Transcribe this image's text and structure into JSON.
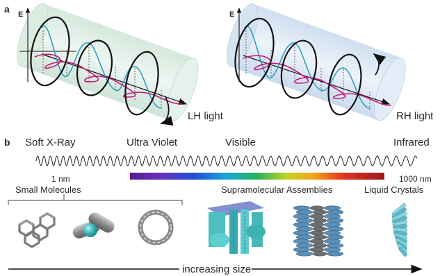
{
  "panel_a": {
    "label": "a",
    "left": {
      "axis_label": "E",
      "caption": "LH light"
    },
    "right": {
      "axis_label": "E",
      "caption": "RH light"
    }
  },
  "panel_b": {
    "label": "b",
    "spectrum_regions": [
      "Soft X-Ray",
      "Ultra Violet",
      "Visible",
      "Infrared"
    ],
    "scale_min": "1 nm",
    "scale_max": "1000 nm",
    "categories": [
      "Small Molecules",
      "Supramolecular Assemblies",
      "Liquid Crystals"
    ],
    "arrow_label": "increasing size"
  },
  "colors": {
    "cylinder_left": "#e3efe9",
    "cylinder_right": "#dde8f3",
    "helix": "#c5177a",
    "wave": "#2e9fc0",
    "ellipse": "#111111",
    "molecule_gray": "#8d8d8d",
    "molecule_teal": "#3cbcbc"
  }
}
